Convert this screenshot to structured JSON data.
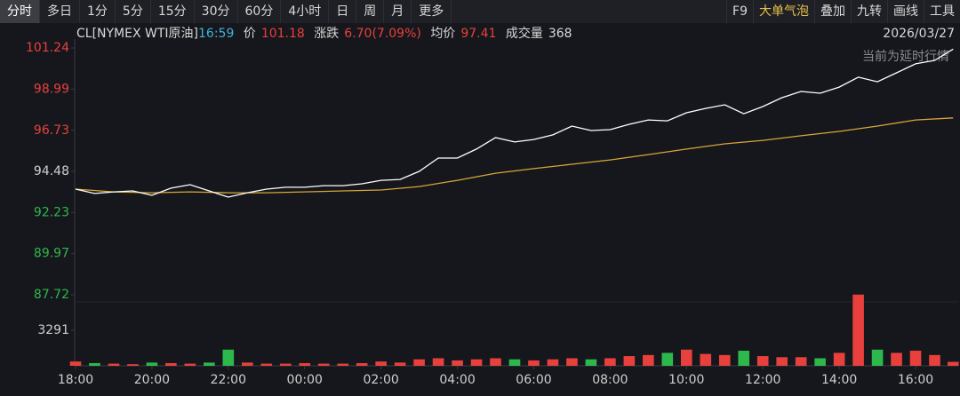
{
  "toolbar": {
    "tabs": [
      "分时",
      "多日",
      "1分",
      "5分",
      "15分",
      "30分",
      "60分",
      "4小时",
      "日",
      "周",
      "月",
      "更多"
    ],
    "tools": [
      "F9",
      "大单气泡",
      "叠加",
      "九转",
      "画线",
      "工具"
    ]
  },
  "info": {
    "symbol": "CL[NYMEX WTI原油]",
    "time": "16:59",
    "price_label": "价",
    "price": "101.18",
    "change_label": "涨跌",
    "change": "6.70(7.09%)",
    "avg_label": "均价",
    "avg": "97.41",
    "volume_label": "成交量",
    "volume": "368",
    "date": "2026/03/27"
  },
  "notice": "当前为延时行情",
  "chart_data": {
    "type": "line",
    "x": [
      "18:00",
      "18:30",
      "19:00",
      "19:30",
      "20:00",
      "20:30",
      "21:00",
      "21:30",
      "22:00",
      "22:30",
      "23:00",
      "23:30",
      "00:00",
      "00:30",
      "01:00",
      "01:30",
      "02:00",
      "02:30",
      "03:00",
      "03:30",
      "04:00",
      "04:30",
      "05:00",
      "05:30",
      "06:00",
      "06:30",
      "07:00",
      "07:30",
      "08:00",
      "08:30",
      "09:00",
      "09:30",
      "10:00",
      "10:30",
      "11:00",
      "11:30",
      "12:00",
      "12:30",
      "13:00",
      "13:30",
      "14:00",
      "14:30",
      "15:00",
      "15:30",
      "16:00",
      "16:30",
      "16:59"
    ],
    "xlim": [
      "18:00",
      "17:00"
    ],
    "xticks": [
      "18:00",
      "20:00",
      "22:00",
      "00:00",
      "02:00",
      "04:00",
      "06:00",
      "08:00",
      "10:00",
      "12:00",
      "14:00",
      "16:00"
    ],
    "ylim": [
      87.72,
      101.7
    ],
    "yticks": [
      87.72,
      89.97,
      92.23,
      94.48,
      96.73,
      98.99,
      101.24
    ],
    "ytick_colors": [
      "#2db84b",
      "#2db84b",
      "#2db84b",
      "#cfcfcf",
      "#e8403c",
      "#e8403c",
      "#e8403c"
    ],
    "y2lim": [
      0,
      6582
    ],
    "y2ticks": [
      3291
    ],
    "up_color": "#e8403c",
    "down_color": "#2db84b",
    "series": [
      {
        "color": "#ffffff",
        "values": [
          93.51,
          93.27,
          93.36,
          93.41,
          93.17,
          93.56,
          93.75,
          93.41,
          93.07,
          93.31,
          93.51,
          93.61,
          93.61,
          93.7,
          93.7,
          93.8,
          93.99,
          94.04,
          94.48,
          95.21,
          95.21,
          95.7,
          96.33,
          96.09,
          96.23,
          96.48,
          96.96,
          96.72,
          96.77,
          97.06,
          97.3,
          97.25,
          97.69,
          97.93,
          98.13,
          97.64,
          98.03,
          98.52,
          98.86,
          98.76,
          99.1,
          99.64,
          99.39,
          99.88,
          100.37,
          100.56,
          101.18
        ]
      },
      {
        "color": "#d9a53a",
        "x": [
          "18:00",
          "19:00",
          "20:00",
          "21:00",
          "22:00",
          "23:00",
          "00:00",
          "01:00",
          "02:00",
          "03:00",
          "04:00",
          "05:00",
          "06:00",
          "07:00",
          "08:00",
          "09:00",
          "10:00",
          "11:00",
          "12:00",
          "13:00",
          "14:00",
          "15:00",
          "16:00",
          "16:59"
        ],
        "values": [
          93.51,
          93.36,
          93.31,
          93.36,
          93.31,
          93.31,
          93.36,
          93.41,
          93.46,
          93.65,
          93.99,
          94.38,
          94.63,
          94.87,
          95.11,
          95.4,
          95.7,
          95.99,
          96.18,
          96.43,
          96.67,
          96.96,
          97.3,
          97.41
        ]
      },
      {
        "type": "bar",
        "axis": "y2",
        "values": [
          400,
          250,
          200,
          150,
          300,
          250,
          200,
          300,
          1500,
          300,
          200,
          200,
          250,
          200,
          200,
          250,
          400,
          300,
          600,
          700,
          500,
          600,
          700,
          600,
          500,
          600,
          700,
          600,
          700,
          900,
          1000,
          1200,
          1500,
          1100,
          1000,
          1400,
          900,
          800,
          800,
          700,
          1200,
          6600,
          1500,
          1200,
          1400,
          1000,
          368
        ]
      }
    ]
  }
}
